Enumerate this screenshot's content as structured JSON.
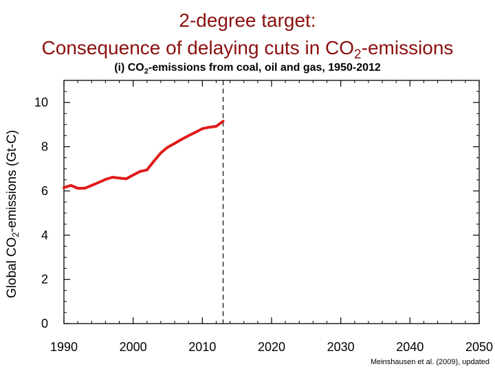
{
  "titles": {
    "line1": "2-degree target:",
    "line2_pre": "Consequence of delaying cuts in CO",
    "line2_sub": "2",
    "line2_post": "-emissions",
    "sub_pre": "(i) CO",
    "sub_sub": "2",
    "sub_post": "-emissions from coal, oil and gas, 1950-2012"
  },
  "credit": "Meinshausen et al. (2009), updated",
  "colors": {
    "title": "#8b0f0f",
    "series": "#e0191b",
    "axis": "#000000"
  },
  "chart_data": {
    "type": "line",
    "title": "2-degree target: Consequence of delaying cuts in CO2-emissions",
    "subtitle": "(i) CO2-emissions from coal, oil and gas, 1950-2012",
    "xlabel": "",
    "ylabel_pre": "Global CO",
    "ylabel_sub": "2",
    "ylabel_post": "-emissions (Gt-C)",
    "xlim": [
      1990,
      2050
    ],
    "ylim": [
      0,
      11
    ],
    "xticks": [
      1990,
      2000,
      2010,
      2020,
      2030,
      2040,
      2050
    ],
    "yticks": [
      0,
      2,
      4,
      6,
      8,
      10
    ],
    "grid": false,
    "vline": {
      "x": 2013,
      "style": "dashed"
    },
    "series": [
      {
        "x": [
          1990,
          1991,
          1992,
          1993,
          1994,
          1995,
          1996,
          1997,
          1998,
          1999,
          2000,
          2001,
          2002,
          2003,
          2004,
          2005,
          2006,
          2007,
          2008,
          2009,
          2010,
          2011,
          2012,
          2013
        ],
        "values": [
          6.15,
          6.25,
          6.12,
          6.12,
          6.25,
          6.38,
          6.52,
          6.62,
          6.58,
          6.55,
          6.72,
          6.88,
          6.95,
          7.35,
          7.72,
          7.98,
          8.15,
          8.33,
          8.5,
          8.65,
          8.82,
          8.88,
          8.92,
          9.15
        ]
      }
    ]
  }
}
